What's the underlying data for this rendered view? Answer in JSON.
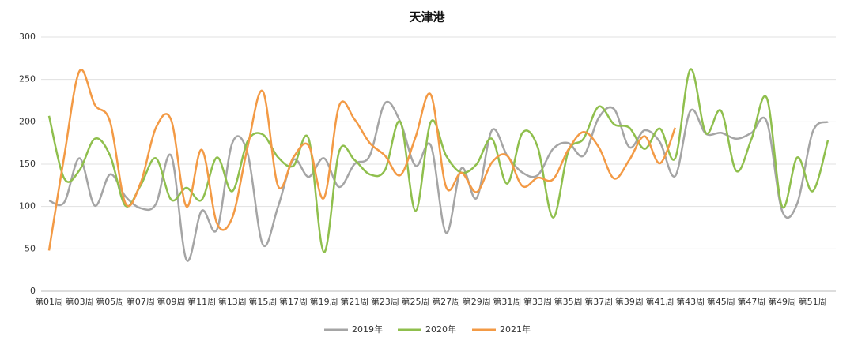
{
  "chart_data": {
    "type": "line",
    "title": "天津港",
    "categories": [
      "第01周",
      null,
      "第03周",
      null,
      "第05周",
      null,
      "第07周",
      null,
      "第09周",
      null,
      "第11周",
      null,
      "第13周",
      null,
      "第15周",
      null,
      "第17周",
      null,
      "第19周",
      null,
      "第21周",
      null,
      "第23周",
      null,
      "第25周",
      null,
      "第27周",
      null,
      "第29周",
      null,
      "第31周",
      null,
      "第33周",
      null,
      "第35周",
      null,
      "第37周",
      null,
      "第39周",
      null,
      "第41周",
      null,
      "第43周",
      null,
      "第45周",
      null,
      "第47周",
      null,
      "第49周",
      null,
      "第51周",
      null
    ],
    "series": [
      {
        "name": "2019年",
        "color": "#a5a5a5",
        "values": [
          107,
          105,
          157,
          101,
          138,
          112,
          98,
          103,
          160,
          37,
          95,
          73,
          175,
          163,
          55,
          100,
          155,
          135,
          157,
          123,
          150,
          160,
          222,
          200,
          148,
          172,
          69,
          145,
          110,
          190,
          160,
          140,
          137,
          168,
          175,
          160,
          205,
          215,
          170,
          190,
          176,
          136,
          213,
          186,
          187,
          180,
          187,
          200,
          95,
          104,
          188,
          200
        ]
      },
      {
        "name": "2020年",
        "color": "#8fbf4d",
        "values": [
          207,
          133,
          143,
          180,
          160,
          101,
          125,
          157,
          108,
          122,
          108,
          158,
          118,
          177,
          185,
          158,
          148,
          180,
          46,
          165,
          155,
          138,
          143,
          200,
          95,
          200,
          160,
          140,
          150,
          180,
          127,
          187,
          170,
          87,
          165,
          180,
          218,
          197,
          193,
          168,
          192,
          157,
          262,
          187,
          213,
          142,
          180,
          228,
          100,
          158,
          118,
          178
        ]
      },
      {
        "name": "2021年",
        "color": "#f39a45",
        "values": [
          48,
          160,
          260,
          220,
          200,
          104,
          128,
          193,
          202,
          100,
          167,
          80,
          87,
          170,
          236,
          124,
          158,
          172,
          110,
          219,
          203,
          175,
          160,
          137,
          182,
          232,
          123,
          140,
          117,
          152,
          160,
          124,
          134,
          132,
          167,
          188,
          170,
          133,
          155,
          183,
          151,
          193,
          null,
          null,
          null,
          null,
          null,
          null,
          null,
          null,
          null,
          null
        ]
      }
    ],
    "ylim": [
      0,
      300
    ],
    "yticks": [
      0,
      50,
      100,
      150,
      200,
      250,
      300
    ],
    "grid": true,
    "legend": "bottom"
  }
}
